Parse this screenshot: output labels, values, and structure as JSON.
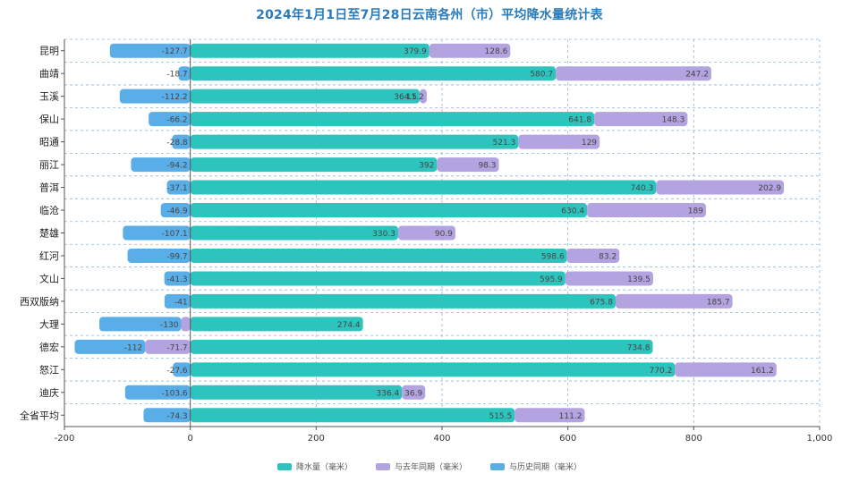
{
  "chart_data": {
    "type": "bar",
    "orientation": "horizontal",
    "stacked": true,
    "title": "2024年1月1日至7月28日云南各州（市）平均降水量统计表",
    "categories": [
      "昆明",
      "曲靖",
      "玉溪",
      "保山",
      "昭通",
      "丽江",
      "普洱",
      "临沧",
      "楚雄",
      "红河",
      "文山",
      "西双版纳",
      "大理",
      "德宏",
      "怒江",
      "迪庆",
      "全省平均"
    ],
    "series": [
      {
        "name": "降水量（毫米）",
        "color": "#2ec4be",
        "values": [
          379.9,
          580.7,
          364.5,
          641.8,
          521.3,
          392,
          740.3,
          630.4,
          330.3,
          598.6,
          595.9,
          675.8,
          274.4,
          734.8,
          770.2,
          336.4,
          515.5
        ]
      },
      {
        "name": "与去年同期（毫米）",
        "color": "#b3a3e0",
        "values": [
          128.6,
          247.2,
          11.2,
          148.3,
          129,
          98.3,
          202.9,
          189,
          90.9,
          83.2,
          139.5,
          185.7,
          -14.5,
          -71.7,
          161.2,
          36.9,
          111.2
        ]
      },
      {
        "name": "与历史同期（毫米）",
        "color": "#5aaee8",
        "values": [
          -127.7,
          -18.7,
          -112.2,
          -66.2,
          -28.8,
          -94.2,
          -37.1,
          -46.9,
          -107.1,
          -99.7,
          -41.3,
          -41,
          -130,
          -112,
          -27.6,
          -103.6,
          -74.3
        ]
      }
    ],
    "value_labels": [
      [
        "379.9",
        "128.6",
        "-127.7"
      ],
      [
        "580.7",
        "247.2",
        "-18.7"
      ],
      [
        "364.5",
        "11.2",
        "-112.2"
      ],
      [
        "641.8",
        "148.3",
        "-66.2"
      ],
      [
        "521.3",
        "129",
        "-28.8"
      ],
      [
        "392",
        "98.3",
        "-94.2"
      ],
      [
        "740.3",
        "202.9",
        "-37.1"
      ],
      [
        "630.4",
        "189",
        "-46.9"
      ],
      [
        "330.3",
        "90.9",
        "-107.1"
      ],
      [
        "598.6",
        "83.2",
        "-99.7"
      ],
      [
        "595.9",
        "139.5",
        "-41.3"
      ],
      [
        "675.8",
        "185.7",
        "-41"
      ],
      [
        "274.4",
        "",
        "-130"
      ],
      [
        "734.8",
        "-71.7",
        "-112"
      ],
      [
        "770.2",
        "161.2",
        "-27.6"
      ],
      [
        "336.4",
        "36.9",
        "-103.6"
      ],
      [
        "515.5",
        "111.2",
        "-74.3"
      ]
    ],
    "xlim": [
      -200,
      1000
    ],
    "xticks": [
      -200,
      0,
      200,
      400,
      600,
      800,
      1000
    ],
    "xtick_labels": [
      "-200",
      "0",
      "200",
      "400",
      "600",
      "800",
      "1,000"
    ],
    "grid": true,
    "legend_position": "bottom"
  }
}
